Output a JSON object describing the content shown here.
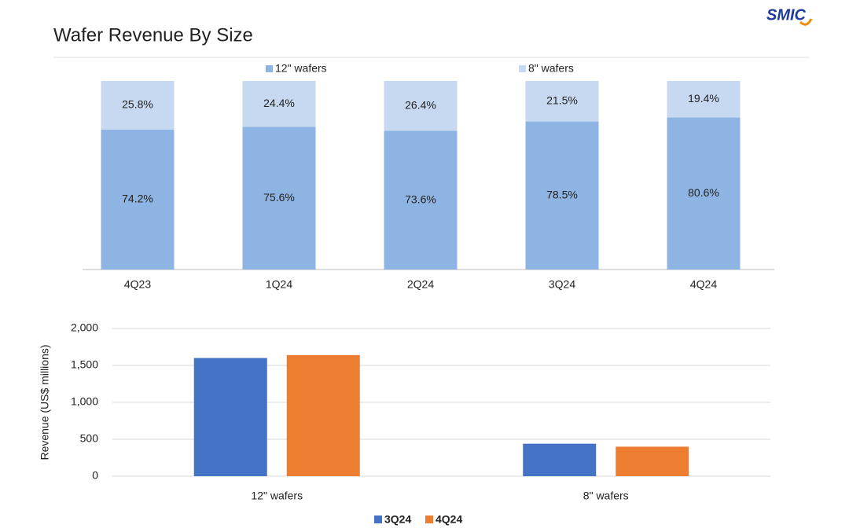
{
  "header": {
    "title": "Wafer Revenue By Size",
    "logo": "SMIC"
  },
  "chart_data": [
    {
      "type": "bar",
      "stacked": true,
      "categories": [
        "4Q23",
        "1Q24",
        "2Q24",
        "3Q24",
        "4Q24"
      ],
      "series": [
        {
          "name": "12\" wafers",
          "color": "#8eb4e3",
          "values": [
            74.2,
            75.6,
            73.6,
            78.5,
            80.6
          ],
          "value_labels": [
            "74.2%",
            "75.6%",
            "73.6%",
            "78.5%",
            "80.6%"
          ]
        },
        {
          "name": "8\" wafers",
          "color": "#c6d9f1",
          "values": [
            25.8,
            24.4,
            26.4,
            21.5,
            19.4
          ],
          "value_labels": [
            "25.8%",
            "24.4%",
            "26.4%",
            "21.5%",
            "19.4%"
          ]
        }
      ]
    },
    {
      "type": "bar",
      "stacked": false,
      "ylabel": "Revenue (US$  millions)",
      "categories": [
        "12\" wafers",
        "8\" wafers"
      ],
      "series": [
        {
          "name": "3Q24",
          "color": "#4472c4",
          "values": [
            1600,
            440
          ]
        },
        {
          "name": "4Q24",
          "color": "#ed7d31",
          "values": [
            1640,
            400
          ]
        }
      ],
      "ylim": [
        0,
        2000
      ],
      "yticks": [
        0,
        500,
        {
          "value": 1000,
          "label": "1,000"
        },
        {
          "value": 1500,
          "label": "1,500"
        },
        {
          "value": 2000,
          "label": "2,000"
        }
      ],
      "grid": true
    }
  ]
}
